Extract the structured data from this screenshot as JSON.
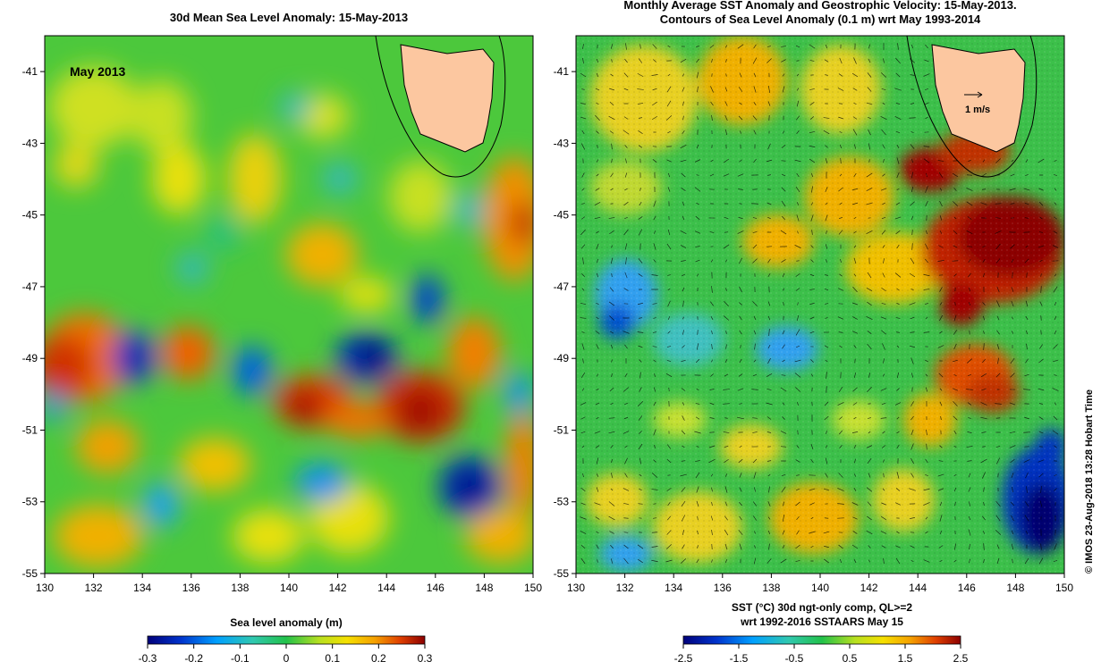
{
  "left_panel": {
    "title": "30d Mean Sea Level Anomaly: 15-May-2013",
    "inset_label": "May 2013",
    "y_ticks": [
      "-41",
      "-43",
      "-45",
      "-47",
      "-49",
      "-51",
      "-53",
      "-55"
    ],
    "x_ticks": [
      "130",
      "132",
      "134",
      "136",
      "138",
      "140",
      "142",
      "144",
      "146",
      "148",
      "150"
    ],
    "colorbar": {
      "title": "Sea level anomaly (m)",
      "ticks": [
        "-0.3",
        "-0.2",
        "-0.1",
        "0",
        "0.1",
        "0.2",
        "0.3"
      ],
      "range": [
        -0.3,
        0.3
      ]
    }
  },
  "right_panel": {
    "title_line1": "Monthly Average SST Anomaly  and Geostrophic Velocity: 15-May-2013.",
    "title_line2": "Contours of Sea Level Anomaly (0.1 m) wrt May 1993-2014",
    "scale_label": "1 m/s",
    "y_ticks": [
      "-41",
      "-43",
      "-45",
      "-47",
      "-49",
      "-51",
      "-53",
      "-55"
    ],
    "x_ticks": [
      "130",
      "132",
      "134",
      "136",
      "138",
      "140",
      "142",
      "144",
      "146",
      "148",
      "150"
    ],
    "colorbar": {
      "title_line1": "SST (°C) 30d ngt-only comp, QL>=2",
      "title_line2": "wrt 1992-2016 SSTAARS May 15",
      "ticks": [
        "-2.5",
        "-1.5",
        "-0.5",
        "0.5",
        "1.5",
        "2.5"
      ],
      "range": [
        -2.5,
        2.5
      ]
    }
  },
  "credit": "© IMOS 23-Aug-2018 13:28 Hobart Time",
  "map_extent": {
    "lon": [
      130,
      150
    ],
    "lat": [
      -55,
      -40
    ]
  },
  "colors": {
    "land": "#fcc7a0",
    "high": "#8c0000",
    "low": "#00007a",
    "mid": "#22c24a"
  }
}
